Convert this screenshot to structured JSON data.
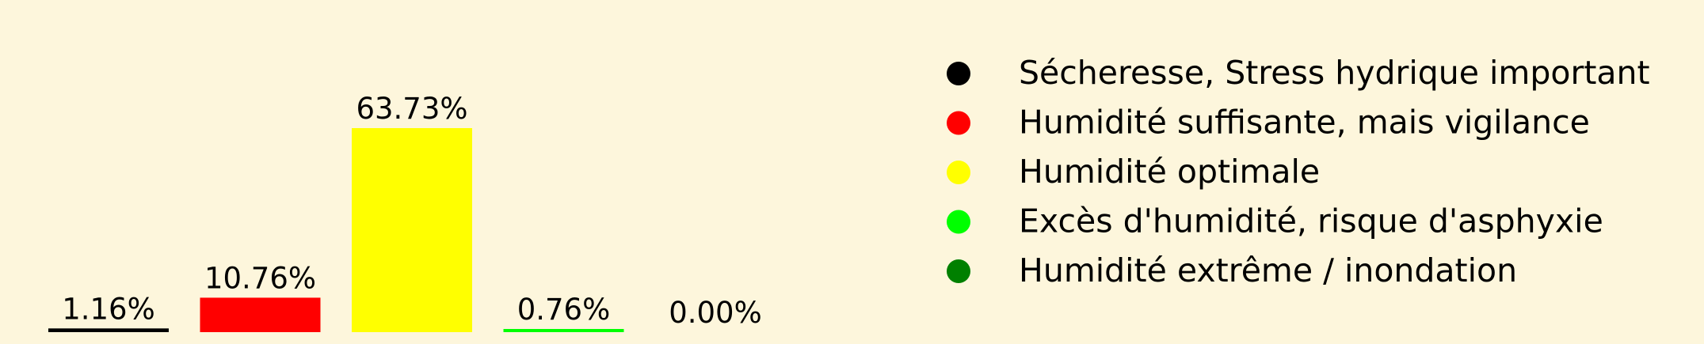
{
  "chart_data": {
    "type": "bar",
    "categories": [
      "Sécheresse, Stress hydrique important",
      "Humidité suffisante, mais vigilance",
      "Humidité optimale",
      "Excès d'humidité, risque d'asphyxie",
      "Humidité extrême / inondation"
    ],
    "values": [
      1.16,
      10.76,
      63.73,
      0.76,
      0.0
    ],
    "value_labels": [
      "1.16%",
      "10.76%",
      "63.73%",
      "0.76%",
      "0.00%"
    ],
    "colors": [
      "#000000",
      "#ff0000",
      "#ffff00",
      "#00ff00",
      "#008000"
    ],
    "legend": {
      "position": "right",
      "entries": [
        {
          "label": "Sécheresse, Stress hydrique important",
          "color": "#000000"
        },
        {
          "label": "Humidité suffisante, mais vigilance",
          "color": "#ff0000"
        },
        {
          "label": "Humidité optimale",
          "color": "#ffff00"
        },
        {
          "label": "Excès d'humidité, risque d'asphyxie",
          "color": "#00ff00"
        },
        {
          "label": "Humidité extrême / inondation",
          "color": "#008000"
        }
      ]
    },
    "axes_visible": false,
    "grid": false,
    "ylim": [
      0,
      63.73
    ]
  },
  "colors": {
    "background": "#fdf6dc"
  }
}
